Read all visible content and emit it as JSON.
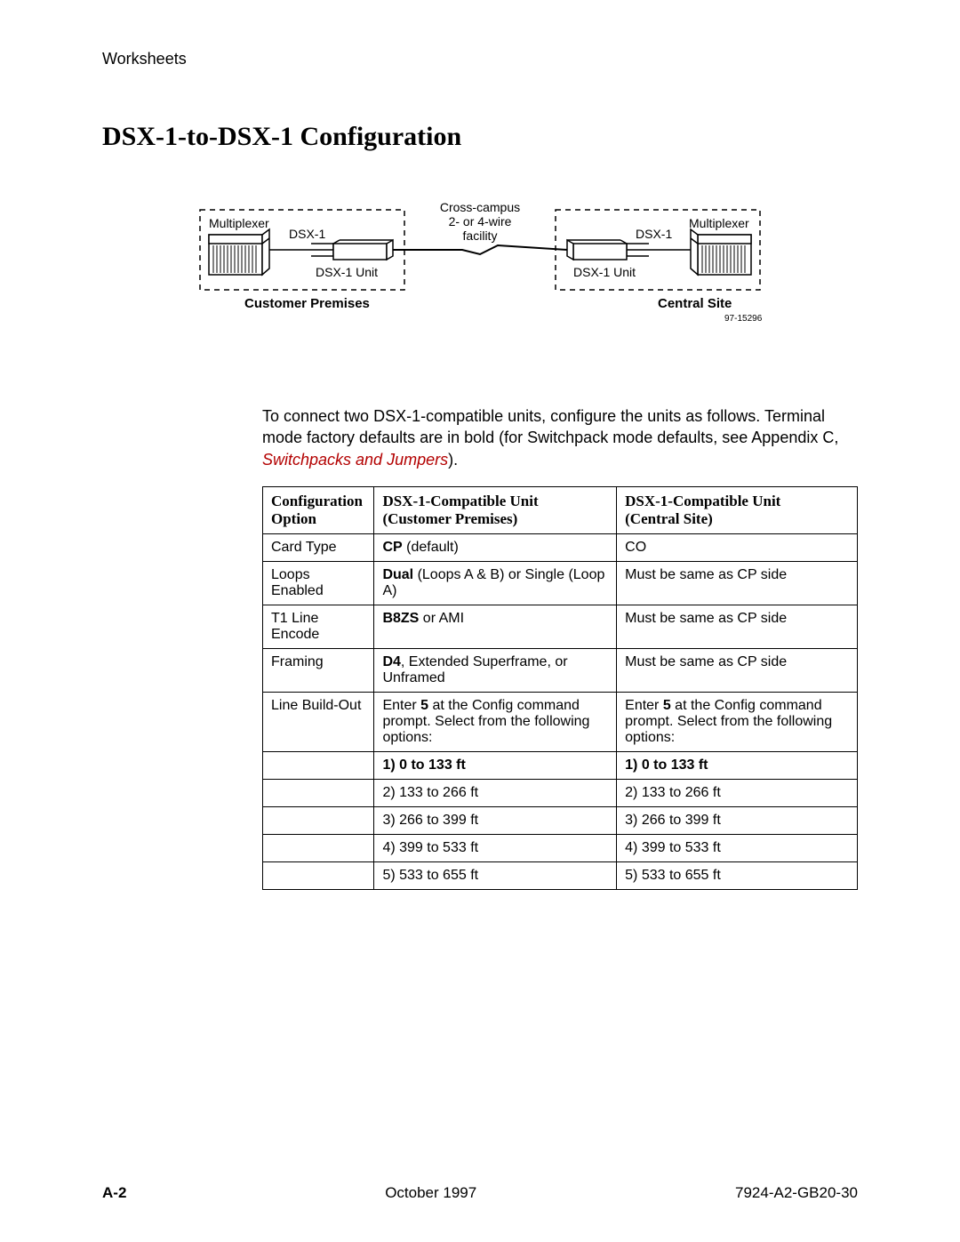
{
  "header": {
    "section": "Worksheets"
  },
  "title": "DSX-1-to-DSX-1 Configuration",
  "diagram": {
    "left_box_label": "Customer Premises",
    "right_box_label": "Central Site",
    "mux_label": "Multiplexer",
    "dsx1_label": "DSX-1",
    "dsx1_unit_label": "DSX-1 Unit",
    "link_line1": "Cross-campus",
    "link_line2": "2- or 4-wire",
    "link_line3": "facility",
    "ref": "97-15296"
  },
  "paragraph": {
    "text_before_link": "To connect two DSX-1-compatible units, configure the units as follows. Terminal mode factory defaults are in bold (for Switchpack mode defaults, see Appendix C, ",
    "link_text": "Switchpacks and Jumpers",
    "text_after_link": ")."
  },
  "table": {
    "headers": {
      "col1a": "Configuration",
      "col1b": "Option",
      "col2a": "DSX-1-Compatible Unit",
      "col2b": "(Customer Premises)",
      "col3a": "DSX-1-Compatible Unit",
      "col3b": "(Central Site)"
    },
    "rows": [
      {
        "opt": "Card Type",
        "cp_b": "CP",
        "cp_t": " (default)",
        "co": "CO"
      },
      {
        "opt": "Loops Enabled",
        "cp_b": "Dual",
        "cp_t": " (Loops A & B) or Single (Loop A)",
        "co": "Must be same as CP side"
      },
      {
        "opt": "T1 Line Encode",
        "cp_b": "B8ZS",
        "cp_t": " or AMI",
        "co": "Must be same as CP side"
      },
      {
        "opt": "Framing",
        "cp_b": "D4",
        "cp_t": ", Extended Superframe, or Unframed",
        "co": "Must be same as CP side"
      }
    ],
    "lbo": {
      "opt": "Line Build-Out",
      "cp_pre": "Enter ",
      "cp_b": "5",
      "cp_post": " at the Config command prompt. Select from the following options:",
      "co_pre": "Enter ",
      "co_b": "5",
      "co_post": " at the Config command prompt. Select from the following options:",
      "options": [
        {
          "cp": "1) 0 to 133 ft",
          "co": "1) 0 to 133 ft",
          "bold": true
        },
        {
          "cp": "2) 133 to 266 ft",
          "co": "2) 133 to 266 ft",
          "bold": false
        },
        {
          "cp": "3) 266 to 399 ft",
          "co": "3) 266 to 399 ft",
          "bold": false
        },
        {
          "cp": "4) 399 to 533 ft",
          "co": "4) 399 to 533 ft",
          "bold": false
        },
        {
          "cp": "5) 533 to 655 ft",
          "co": "5) 533 to 655 ft",
          "bold": false
        }
      ]
    }
  },
  "footer": {
    "page": "A-2",
    "date": "October 1997",
    "doc": "7924-A2-GB20-30"
  }
}
